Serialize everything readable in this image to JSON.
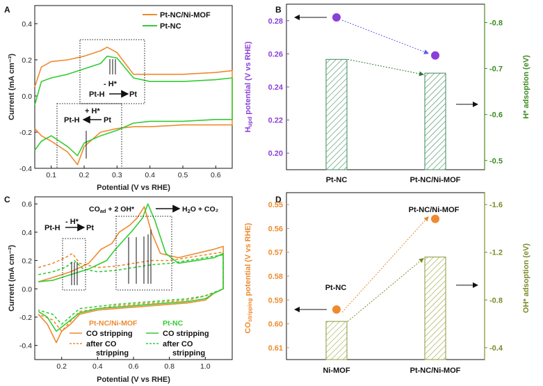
{
  "colors": {
    "orange": "#ee8a2e",
    "green": "#33cc33",
    "purple": "#8a40d8",
    "darkgreen": "#4a8a1e",
    "olive": "#8a8c2a",
    "hatch": "#3a8a5a",
    "hatchD": "#8a9a3a"
  },
  "chart_data": [
    {
      "panel": "A",
      "type": "line",
      "xlabel": "Potential (V vs RHE)",
      "ylabel": "Current (mA cm⁻²)",
      "xlim": [
        0.05,
        0.65
      ],
      "ylim": [
        -0.4,
        0.5
      ],
      "xticks": [
        "0.1",
        "0.2",
        "0.3",
        "0.4",
        "0.5",
        "0.6"
      ],
      "yticks": [
        "-0.4",
        "-0.2",
        "0.0",
        "0.2",
        "0.4"
      ],
      "legend": [
        "Pt-NC/Ni-MOF",
        "Pt-NC"
      ],
      "annotations": {
        "upper": "- H*",
        "upper_from": "Pt-H",
        "upper_to": "Pt",
        "lower": "+ H*",
        "lower_from": "Pt-H",
        "lower_to": "Pt"
      },
      "series": [
        {
          "name": "Pt-NC/Ni-MOF",
          "color": "#ee8a2e",
          "x": [
            0.05,
            0.07,
            0.1,
            0.15,
            0.2,
            0.25,
            0.27,
            0.3,
            0.35,
            0.4,
            0.5,
            0.6,
            0.65,
            0.65,
            0.6,
            0.5,
            0.4,
            0.35,
            0.3,
            0.25,
            0.2,
            0.18,
            0.15,
            0.1,
            0.07,
            0.05
          ],
          "values": [
            0.05,
            0.16,
            0.19,
            0.2,
            0.22,
            0.25,
            0.27,
            0.24,
            0.12,
            0.12,
            0.12,
            0.13,
            0.14,
            -0.16,
            -0.16,
            -0.16,
            -0.17,
            -0.17,
            -0.18,
            -0.2,
            -0.28,
            -0.38,
            -0.31,
            -0.25,
            -0.22,
            -0.18
          ]
        },
        {
          "name": "Pt-NC",
          "color": "#33cc33",
          "x": [
            0.05,
            0.07,
            0.1,
            0.15,
            0.2,
            0.25,
            0.27,
            0.3,
            0.35,
            0.4,
            0.5,
            0.6,
            0.65,
            0.65,
            0.6,
            0.5,
            0.4,
            0.35,
            0.3,
            0.25,
            0.2,
            0.18,
            0.15,
            0.1,
            0.07,
            0.05
          ],
          "values": [
            -0.05,
            0.08,
            0.1,
            0.12,
            0.15,
            0.18,
            0.22,
            0.21,
            0.1,
            0.08,
            0.08,
            0.09,
            0.1,
            -0.13,
            -0.13,
            -0.14,
            -0.14,
            -0.15,
            -0.19,
            -0.22,
            -0.26,
            -0.33,
            -0.28,
            -0.22,
            -0.25,
            -0.3
          ]
        }
      ]
    },
    {
      "panel": "B",
      "type": "bar",
      "categories": [
        "Pt-NC",
        "Pt-NC/Ni-MOF"
      ],
      "ylabel_left_main": "H",
      "ylabel_left_sub": "upd",
      "ylabel_left_rest": " potential (V vs RHE)",
      "ylabel_right": "H* adsoption (eV)",
      "left_ylim": [
        0.19,
        0.29
      ],
      "left_yticks": [
        "0.20",
        "0.22",
        "0.24",
        "0.26",
        "0.28"
      ],
      "right_ylim": [
        -0.48,
        -0.84
      ],
      "right_yticks": [
        "-0.5",
        "-0.6",
        "-0.7",
        "-0.8"
      ],
      "points": [
        0.282,
        0.259
      ],
      "bars": [
        -0.72,
        -0.69
      ]
    },
    {
      "panel": "C",
      "type": "line",
      "xlabel": "Potential (V vs RHE)",
      "ylabel": "Current (mA cm⁻²)",
      "xlim": [
        0.05,
        1.15
      ],
      "ylim": [
        -0.5,
        0.65
      ],
      "xticks": [
        "0.2",
        "0.4",
        "0.6",
        "0.8",
        "1.0"
      ],
      "yticks": [
        "-0.4",
        "-0.2",
        "0.0",
        "0.2",
        "0.4",
        "0.6"
      ],
      "annotations": {
        "top": "COₐd + 2 OH* → H₂O + CO₂",
        "top_a": "CO",
        "top_a_sub": "ad",
        "top_b": " + 2 OH*",
        "top_c": "H",
        "top_c_sub": "2",
        "top_d": "O + CO₂",
        "left": "- H*",
        "left_from": "Pt-H",
        "left_to": "Pt"
      },
      "legend_groups": [
        {
          "title": "Pt-NC/Ni-MOF",
          "items": [
            "CO stripping",
            "after CO stripping"
          ]
        },
        {
          "title": "Pt-NC",
          "items": [
            "CO stripping",
            "after CO stripping"
          ]
        }
      ],
      "legend_lines": {
        "a1": "CO stripping",
        "a2": "after CO",
        "a3": "stripping",
        "b1": "CO stripping",
        "b2": "after CO",
        "b3": "stripping"
      },
      "series": [
        {
          "name": "Pt-NC/Ni-MOF CO stripping",
          "color": "#ee8a2e",
          "dash": "",
          "x": [
            0.07,
            0.15,
            0.25,
            0.35,
            0.42,
            0.48,
            0.52,
            0.58,
            0.62,
            0.66,
            0.7,
            0.75,
            0.85,
            0.95,
            1.05,
            1.1,
            1.1,
            1.05,
            1.0,
            0.9,
            0.8,
            0.7,
            0.6,
            0.5,
            0.4,
            0.3,
            0.25,
            0.2,
            0.17,
            0.12,
            0.07
          ],
          "values": [
            0.05,
            0.08,
            0.12,
            0.18,
            0.28,
            0.32,
            0.4,
            0.45,
            0.5,
            0.58,
            0.4,
            0.25,
            0.22,
            0.25,
            0.28,
            0.3,
            0.0,
            -0.03,
            -0.08,
            -0.1,
            -0.11,
            -0.12,
            -0.13,
            -0.14,
            -0.15,
            -0.18,
            -0.25,
            -0.3,
            -0.38,
            -0.25,
            -0.18
          ]
        },
        {
          "name": "Pt-NC/Ni-MOF after CO stripping",
          "color": "#ee8a2e",
          "dash": "4,3",
          "x": [
            0.07,
            0.15,
            0.22,
            0.26,
            0.3,
            0.4,
            0.5,
            0.6,
            0.7,
            0.8,
            0.9,
            1.0,
            1.1,
            1.1,
            1.0,
            0.9,
            0.7,
            0.5,
            0.3,
            0.2,
            0.15,
            0.07
          ],
          "values": [
            0.15,
            0.18,
            0.22,
            0.25,
            0.18,
            0.15,
            0.16,
            0.18,
            0.2,
            0.2,
            0.22,
            0.24,
            0.26,
            0.0,
            -0.05,
            -0.08,
            -0.1,
            -0.12,
            -0.16,
            -0.3,
            -0.22,
            -0.18
          ]
        },
        {
          "name": "Pt-NC CO stripping",
          "color": "#33cc33",
          "dash": "",
          "x": [
            0.07,
            0.15,
            0.25,
            0.35,
            0.45,
            0.5,
            0.55,
            0.6,
            0.65,
            0.68,
            0.72,
            0.78,
            0.85,
            0.95,
            1.05,
            1.1,
            1.1,
            1.05,
            1.0,
            0.9,
            0.8,
            0.7,
            0.6,
            0.5,
            0.4,
            0.3,
            0.25,
            0.2,
            0.17,
            0.12,
            0.07
          ],
          "values": [
            0.05,
            0.06,
            0.1,
            0.14,
            0.2,
            0.28,
            0.35,
            0.42,
            0.5,
            0.6,
            0.48,
            0.25,
            0.18,
            0.2,
            0.22,
            0.25,
            0.0,
            -0.03,
            -0.07,
            -0.09,
            -0.1,
            -0.11,
            -0.12,
            -0.13,
            -0.14,
            -0.17,
            -0.22,
            -0.27,
            -0.3,
            -0.2,
            -0.16
          ]
        },
        {
          "name": "Pt-NC after CO stripping",
          "color": "#33cc33",
          "dash": "4,3",
          "x": [
            0.07,
            0.15,
            0.22,
            0.27,
            0.32,
            0.4,
            0.5,
            0.6,
            0.7,
            0.8,
            0.9,
            1.0,
            1.1,
            1.1,
            1.0,
            0.9,
            0.7,
            0.5,
            0.3,
            0.2,
            0.15,
            0.07
          ],
          "values": [
            0.1,
            0.12,
            0.15,
            0.2,
            0.14,
            0.12,
            0.13,
            0.15,
            0.17,
            0.18,
            0.2,
            0.22,
            0.24,
            0.0,
            -0.05,
            -0.07,
            -0.09,
            -0.11,
            -0.14,
            -0.25,
            -0.18,
            -0.15
          ]
        }
      ]
    },
    {
      "panel": "D",
      "type": "bar",
      "categories": [
        "Ni-MOF",
        "Pt-NC/Ni-MOF"
      ],
      "ylabel_left_main": "CO",
      "ylabel_left_sub": "stripping",
      "ylabel_left_rest": " potential (V vs RHE)",
      "ylabel_right": "OH* adsoption (eV)",
      "left_ylim": [
        0.615,
        0.545
      ],
      "left_yticks": [
        "0.55",
        "0.56",
        "0.57",
        "0.58",
        "0.59",
        "0.60",
        "0.61"
      ],
      "right_ylim": [
        -0.3,
        -1.7
      ],
      "right_yticks": [
        "-0.4",
        "-0.8",
        "-1.2",
        "-1.6"
      ],
      "points": [
        0.594,
        0.556
      ],
      "point_labels": [
        "Pt-NC",
        "Pt-NC/Ni-MOF"
      ],
      "bars": [
        -0.62,
        -1.16
      ]
    }
  ]
}
